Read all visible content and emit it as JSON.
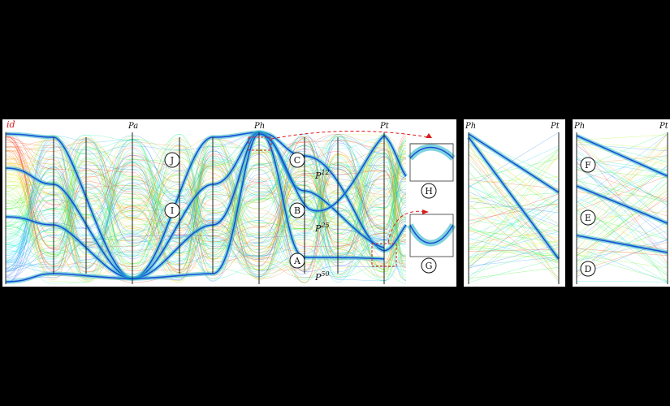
{
  "axis_labels": {
    "id": "id",
    "pa": "Pa",
    "ph": "Ph",
    "pt": "Pt",
    "panel2_ph": "Ph",
    "panel2_pt": "Pt",
    "panel3_ph": "Ph",
    "panel3_pt": "Pt"
  },
  "curve_labels": {
    "p12": "P",
    "p12_sup": "12",
    "p25": "P",
    "p25_sup": "25",
    "p50": "P",
    "p50_sup": "50"
  },
  "markers": [
    "A",
    "B",
    "C",
    "D",
    "E",
    "F",
    "G",
    "H",
    "I",
    "J"
  ],
  "colors": {
    "background": "#000000",
    "panel": "#ffffff",
    "highlight": "#1a4fd6",
    "highlight_glow": "#2ab6c8",
    "annotation": "#d81b1b",
    "axis": "#222222"
  }
}
